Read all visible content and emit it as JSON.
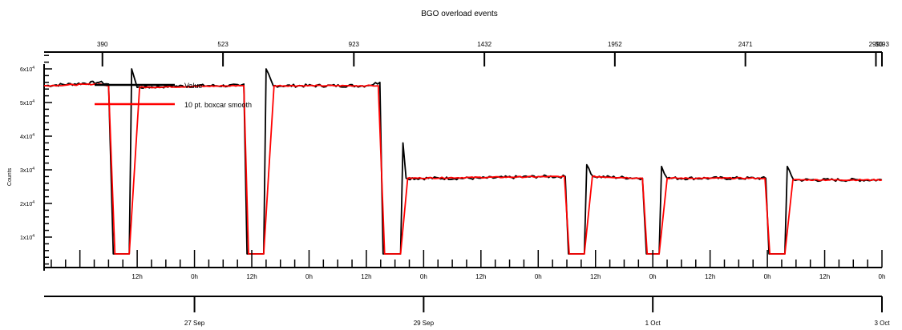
{
  "chart_data": {
    "type": "line",
    "title": "BGO overload events",
    "ylabel": "Counts",
    "ylim": [
      0,
      65000
    ],
    "y_ticks": [
      {
        "value": 10000,
        "label": "1x10^4"
      },
      {
        "value": 20000,
        "label": "2x10^4"
      },
      {
        "value": 30000,
        "label": "3x10^4"
      },
      {
        "value": 40000,
        "label": "4x10^4"
      },
      {
        "value": 50000,
        "label": "5x10^4"
      },
      {
        "value": 60000,
        "label": "6x10^4"
      }
    ],
    "top_axis_ticks": [
      {
        "index_pos": 0.0696,
        "label": "390"
      },
      {
        "index_pos": 0.2135,
        "label": "523"
      },
      {
        "index_pos": 0.3697,
        "label": "923"
      },
      {
        "index_pos": 0.5255,
        "label": "1432"
      },
      {
        "index_pos": 0.6812,
        "label": "1952"
      },
      {
        "index_pos": 0.837,
        "label": "2471"
      },
      {
        "index_pos": 0.9928,
        "label": "2990"
      },
      {
        "index_pos": 1.0,
        "label": "3093"
      }
    ],
    "time_axis": {
      "start": "2024-09-25T16:30",
      "end": "2024-10-03T00:00",
      "hour_labels": [
        {
          "t": "2024-09-26T12:00",
          "label": "12h"
        },
        {
          "t": "2024-09-27T00:00",
          "label": "0h"
        },
        {
          "t": "2024-09-27T12:00",
          "label": "12h"
        },
        {
          "t": "2024-09-28T00:00",
          "label": "0h"
        },
        {
          "t": "2024-09-28T12:00",
          "label": "12h"
        },
        {
          "t": "2024-09-29T00:00",
          "label": "0h"
        },
        {
          "t": "2024-09-29T12:00",
          "label": "12h"
        },
        {
          "t": "2024-09-30T00:00",
          "label": "0h"
        },
        {
          "t": "2024-09-30T12:00",
          "label": "12h"
        },
        {
          "t": "2024-10-01T00:00",
          "label": "0h"
        },
        {
          "t": "2024-10-01T12:00",
          "label": "12h"
        },
        {
          "t": "2024-10-02T00:00",
          "label": "0h"
        },
        {
          "t": "2024-10-02T12:00",
          "label": "12h"
        },
        {
          "t": "2024-10-03T00:00",
          "label": "0h"
        }
      ],
      "date_labels": [
        {
          "t": "2024-09-27T00:00",
          "label": "27 Sep"
        },
        {
          "t": "2024-09-29T00:00",
          "label": "29 Sep"
        },
        {
          "t": "2024-10-01T00:00",
          "label": "1 Oct"
        },
        {
          "t": "2024-10-03T00:00",
          "label": "3 Oct"
        }
      ]
    },
    "legend_placement": "top-left",
    "series": [
      {
        "name": "Value",
        "color": "#000000",
        "points": [
          [
            "2024-09-25T16:30",
            55000
          ],
          [
            "2024-09-26T04:00",
            56000
          ],
          [
            "2024-09-26T06:00",
            55500
          ],
          [
            "2024-09-26T07:00",
            5000
          ],
          [
            "2024-09-26T10:20",
            5000
          ],
          [
            "2024-09-26T10:50",
            60000
          ],
          [
            "2024-09-26T12:00",
            54500
          ],
          [
            "2024-09-27T00:00",
            55000
          ],
          [
            "2024-09-27T09:30",
            55000
          ],
          [
            "2024-09-27T10:20",
            55500
          ],
          [
            "2024-09-27T11:00",
            5000
          ],
          [
            "2024-09-27T14:30",
            5000
          ],
          [
            "2024-09-27T15:00",
            60000
          ],
          [
            "2024-09-27T16:30",
            55000
          ],
          [
            "2024-09-28T12:00",
            55000
          ],
          [
            "2024-09-28T14:50",
            56000
          ],
          [
            "2024-09-28T15:30",
            5000
          ],
          [
            "2024-09-28T19:10",
            5000
          ],
          [
            "2024-09-28T19:40",
            38000
          ],
          [
            "2024-09-28T20:20",
            27500
          ],
          [
            "2024-09-29T12:00",
            27500
          ],
          [
            "2024-09-30T00:00",
            28000
          ],
          [
            "2024-09-30T05:40",
            28000
          ],
          [
            "2024-09-30T06:20",
            5000
          ],
          [
            "2024-09-30T09:40",
            5000
          ],
          [
            "2024-09-30T10:10",
            31500
          ],
          [
            "2024-09-30T11:30",
            28000
          ],
          [
            "2024-09-30T21:50",
            27500
          ],
          [
            "2024-09-30T22:40",
            5000
          ],
          [
            "2024-10-01T01:20",
            5000
          ],
          [
            "2024-10-01T01:50",
            31000
          ],
          [
            "2024-10-01T03:00",
            27500
          ],
          [
            "2024-10-01T12:00",
            27500
          ],
          [
            "2024-10-01T23:40",
            27500
          ],
          [
            "2024-10-02T00:20",
            5000
          ],
          [
            "2024-10-02T03:40",
            5000
          ],
          [
            "2024-10-02T04:10",
            31000
          ],
          [
            "2024-10-02T05:30",
            27000
          ],
          [
            "2024-10-03T00:00",
            27000
          ]
        ]
      },
      {
        "name": "10 pt. boxcar smooth",
        "color": "#ff0000",
        "points": [
          [
            "2024-09-25T16:30",
            55000
          ],
          [
            "2024-09-26T04:00",
            55500
          ],
          [
            "2024-09-26T06:00",
            55000
          ],
          [
            "2024-09-26T07:20",
            5000
          ],
          [
            "2024-09-26T10:20",
            5000
          ],
          [
            "2024-09-26T12:30",
            54500
          ],
          [
            "2024-09-27T09:30",
            55000
          ],
          [
            "2024-09-27T10:20",
            55000
          ],
          [
            "2024-09-27T11:20",
            5000
          ],
          [
            "2024-09-27T14:30",
            5000
          ],
          [
            "2024-09-27T16:40",
            55000
          ],
          [
            "2024-09-28T12:00",
            55000
          ],
          [
            "2024-09-28T14:30",
            55000
          ],
          [
            "2024-09-28T15:50",
            5000
          ],
          [
            "2024-09-28T19:10",
            5000
          ],
          [
            "2024-09-28T20:40",
            27500
          ],
          [
            "2024-09-30T05:30",
            28000
          ],
          [
            "2024-09-30T06:30",
            5000
          ],
          [
            "2024-09-30T09:40",
            5000
          ],
          [
            "2024-09-30T11:20",
            28000
          ],
          [
            "2024-09-30T21:50",
            27500
          ],
          [
            "2024-09-30T22:50",
            5000
          ],
          [
            "2024-10-01T01:20",
            5000
          ],
          [
            "2024-10-01T03:00",
            27500
          ],
          [
            "2024-10-01T23:30",
            27500
          ],
          [
            "2024-10-02T00:30",
            5000
          ],
          [
            "2024-10-02T03:40",
            5000
          ],
          [
            "2024-10-02T05:20",
            27000
          ],
          [
            "2024-10-03T00:00",
            27000
          ]
        ]
      }
    ]
  }
}
